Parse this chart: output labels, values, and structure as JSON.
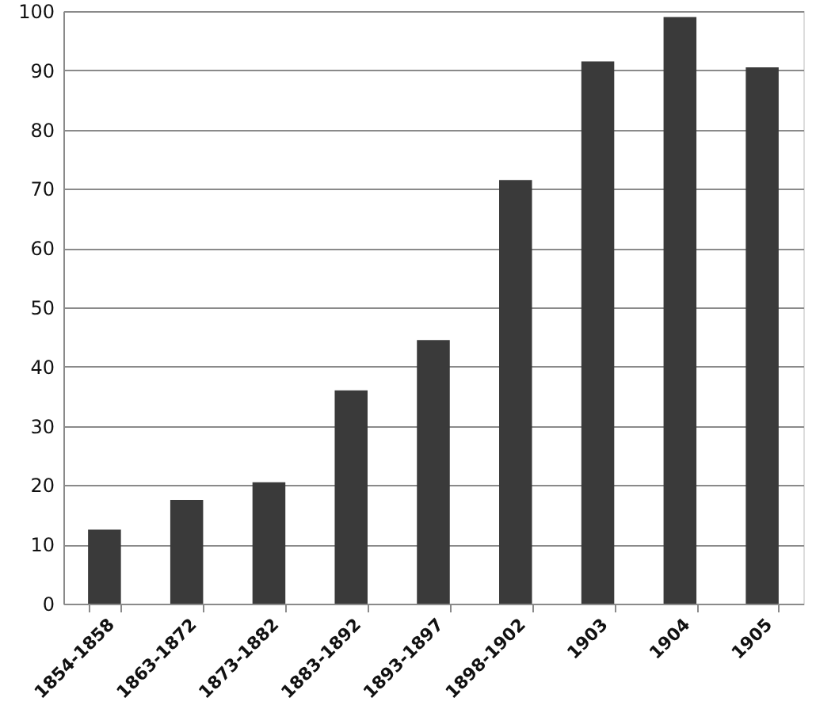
{
  "chart_data": {
    "type": "bar",
    "categories": [
      "1854-1858",
      "1863-1872",
      "1873-1882",
      "1883-1892",
      "1893-1897",
      "1898-1902",
      "1903",
      "1904",
      "1905"
    ],
    "values": [
      12.5,
      17.5,
      20.5,
      36,
      44.5,
      71.5,
      91.5,
      99,
      90.5
    ],
    "color": "#3a3a3a",
    "ylim": [
      0,
      100
    ],
    "yticks": [
      0,
      10,
      20,
      30,
      40,
      50,
      60,
      70,
      80,
      90,
      100
    ],
    "grid": "y"
  }
}
